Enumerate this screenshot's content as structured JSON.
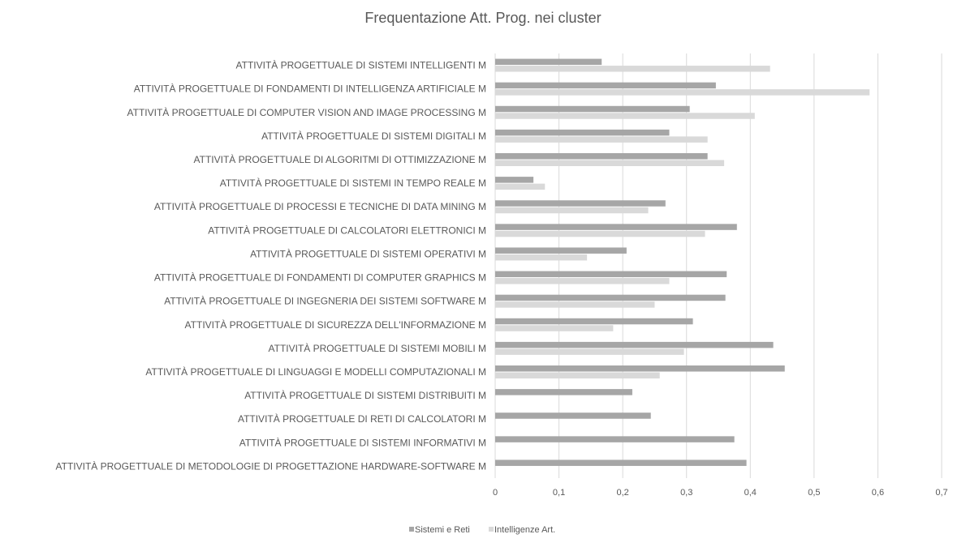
{
  "chart_data": {
    "type": "bar",
    "orientation": "horizontal",
    "title": "Frequentazione Att. Prog. nei cluster",
    "categories": [
      "ATTIVITÀ PROGETTUALE DI SISTEMI INTELLIGENTI M",
      "ATTIVITÀ PROGETTUALE DI FONDAMENTI DI INTELLIGENZA ARTIFICIALE M",
      "ATTIVITÀ PROGETTUALE DI COMPUTER VISION AND IMAGE PROCESSING M",
      "ATTIVITÀ PROGETTUALE DI SISTEMI DIGITALI M",
      "ATTIVITÀ PROGETTUALE DI ALGORITMI DI OTTIMIZZAZIONE M",
      "ATTIVITÀ PROGETTUALE DI SISTEMI IN TEMPO REALE M",
      "ATTIVITÀ PROGETTUALE DI PROCESSI E TECNICHE DI DATA MINING M",
      "ATTIVITÀ PROGETTUALE DI CALCOLATORI ELETTRONICI M",
      "ATTIVITÀ PROGETTUALE DI SISTEMI OPERATIVI M",
      "ATTIVITÀ PROGETTUALE DI FONDAMENTI DI COMPUTER GRAPHICS M",
      "ATTIVITÀ PROGETTUALE DI INGEGNERIA DEI SISTEMI SOFTWARE M",
      "ATTIVITÀ PROGETTUALE DI SICUREZZA DELL'INFORMAZIONE M",
      "ATTIVITÀ PROGETTUALE DI SISTEMI MOBILI M",
      "ATTIVITÀ PROGETTUALE DI LINGUAGGI E MODELLI COMPUTAZIONALI M",
      "ATTIVITÀ PROGETTUALE DI SISTEMI DISTRIBUITI M",
      "ATTIVITÀ PROGETTUALE DI RETI DI CALCOLATORI M",
      "ATTIVITÀ PROGETTUALE DI SISTEMI INFORMATIVI M",
      "ATTIVITÀ PROGETTUALE DI METODOLOGIE DI PROGETTAZIONE HARDWARE-SOFTWARE M"
    ],
    "series": [
      {
        "name": "Sistemi e Reti",
        "color": "#a6a6a6",
        "values": [
          0.167,
          0.346,
          0.305,
          0.273,
          0.333,
          0.06,
          0.267,
          0.379,
          0.206,
          0.363,
          0.361,
          0.31,
          0.436,
          0.454,
          0.215,
          0.244,
          0.375,
          0.394
        ]
      },
      {
        "name": "Intelligenze Art.",
        "color": "#d9d9d9",
        "values": [
          0.431,
          0.587,
          0.407,
          0.333,
          0.359,
          0.078,
          0.24,
          0.329,
          0.144,
          0.273,
          0.25,
          0.185,
          0.296,
          0.258,
          0,
          0,
          0,
          0
        ]
      }
    ],
    "xlim": [
      0,
      0.7
    ],
    "xticks": [
      "0",
      "0,1",
      "0,2",
      "0,3",
      "0,4",
      "0,5",
      "0,6",
      "0,7"
    ],
    "grid": true,
    "legend_position": "bottom"
  }
}
